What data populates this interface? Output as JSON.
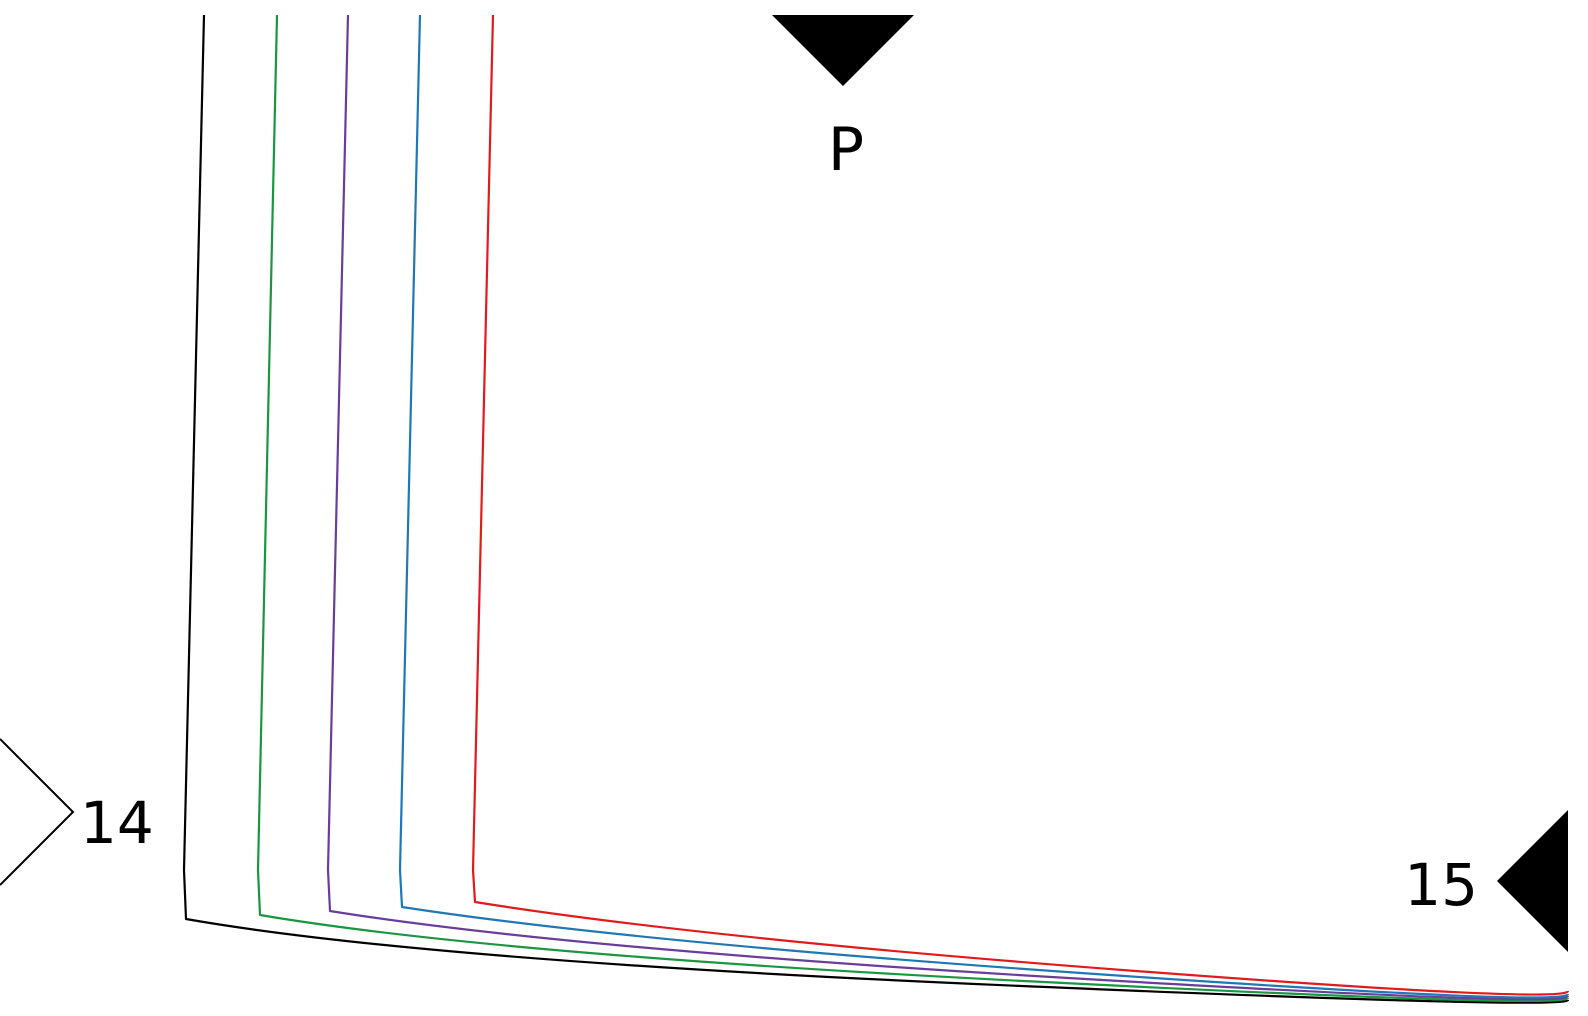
{
  "labels": {
    "top_marker": "P",
    "left_marker": "14",
    "right_marker": "15"
  },
  "markers": [
    {
      "id": "top",
      "shape": "filled-triangle-down"
    },
    {
      "id": "left",
      "shape": "outline-chevron-right"
    },
    {
      "id": "right",
      "shape": "filled-triangle-left"
    }
  ],
  "curves": [
    {
      "name": "black-curve",
      "color": "#000000"
    },
    {
      "name": "green-curve",
      "color": "#1a9641"
    },
    {
      "name": "purple-curve",
      "color": "#6a3d9a"
    },
    {
      "name": "blue-curve",
      "color": "#1f78b4"
    },
    {
      "name": "red-curve",
      "color": "#e31a1c"
    }
  ]
}
